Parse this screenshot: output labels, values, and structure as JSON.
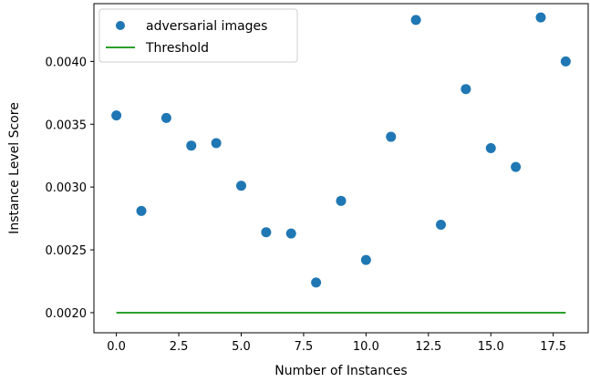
{
  "chart_data": {
    "type": "scatter",
    "title": "",
    "xlabel": "Number of Instances",
    "ylabel": "Instance Level Score",
    "xlim": [
      -0.9,
      18.9
    ],
    "ylim": [
      0.00184,
      0.00446
    ],
    "xticks": [
      0,
      2.5,
      5,
      7.5,
      10,
      12.5,
      15,
      17.5
    ],
    "xtick_labels": [
      "0.0",
      "2.5",
      "5.0",
      "7.5",
      "10.0",
      "12.5",
      "15.0",
      "17.5"
    ],
    "yticks": [
      0.002,
      0.0025,
      0.003,
      0.0035,
      0.004
    ],
    "ytick_labels": [
      "0.0020",
      "0.0025",
      "0.0030",
      "0.0035",
      "0.0040"
    ],
    "grid": false,
    "legend_position": "top-left",
    "series": [
      {
        "name": "adversarial images",
        "kind": "scatter",
        "color": "#1f77b4",
        "x": [
          0,
          1,
          2,
          3,
          4,
          5,
          6,
          7,
          8,
          9,
          10,
          11,
          12,
          13,
          14,
          15,
          16,
          17,
          18
        ],
        "y": [
          0.00357,
          0.00281,
          0.00355,
          0.00333,
          0.00335,
          0.00301,
          0.00264,
          0.00263,
          0.00224,
          0.00289,
          0.00242,
          0.0034,
          0.00433,
          0.0027,
          0.00378,
          0.00331,
          0.00316,
          0.00435,
          0.004
        ]
      },
      {
        "name": "Threshold",
        "kind": "line",
        "color": "#2ca02c",
        "x": [
          0,
          18
        ],
        "y": [
          0.002,
          0.002
        ]
      }
    ]
  }
}
